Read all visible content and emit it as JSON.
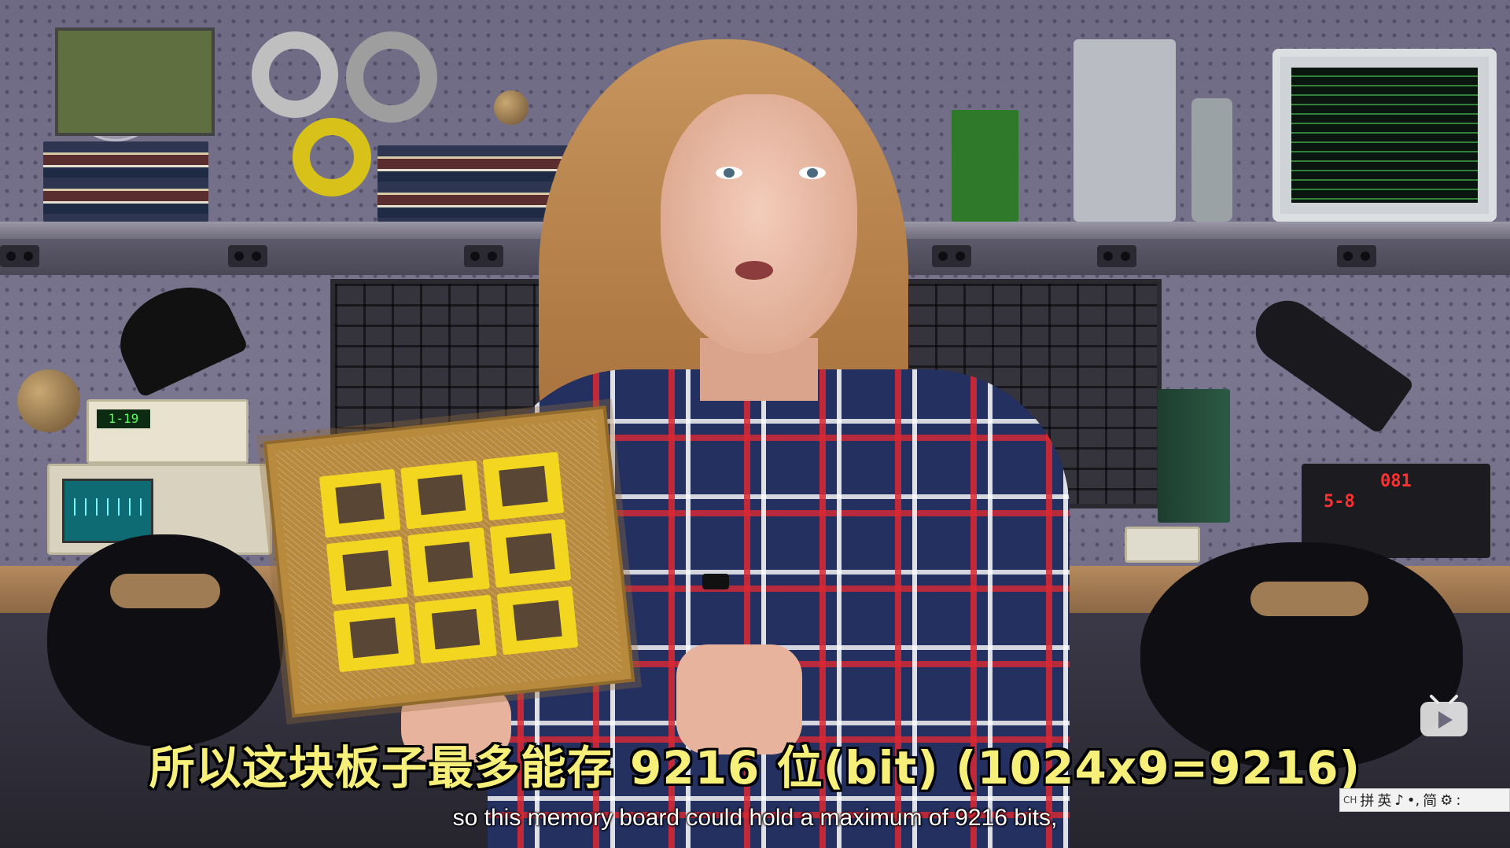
{
  "video": {
    "subtitle_cn": "所以这块板子最多能存 9216 位(bit) (1024x9=9216)",
    "subtitle_en": "so this memory board could hold a maximum of 9216 bits,"
  },
  "overlay": {
    "channel_logo_icon": "pbs-logo-icon",
    "player_icon": "bilibili-tv-icon"
  },
  "ime_toolbar": {
    "lang_code": "CH",
    "mode": "拼",
    "language": "英",
    "punct_glyph": "♪",
    "punct_mode": "•,",
    "script": "简",
    "settings_glyph": "⚙",
    "more_glyph": ":"
  },
  "scene": {
    "psu_display_1": "081",
    "psu_display_2": "5-8",
    "meter_display": "1-19",
    "colors": {
      "subtitle_cn": "#f6ef7a",
      "subtitle_en": "#ffffff",
      "pegboard": "#76728c",
      "core_yellow": "#f2d620"
    }
  }
}
